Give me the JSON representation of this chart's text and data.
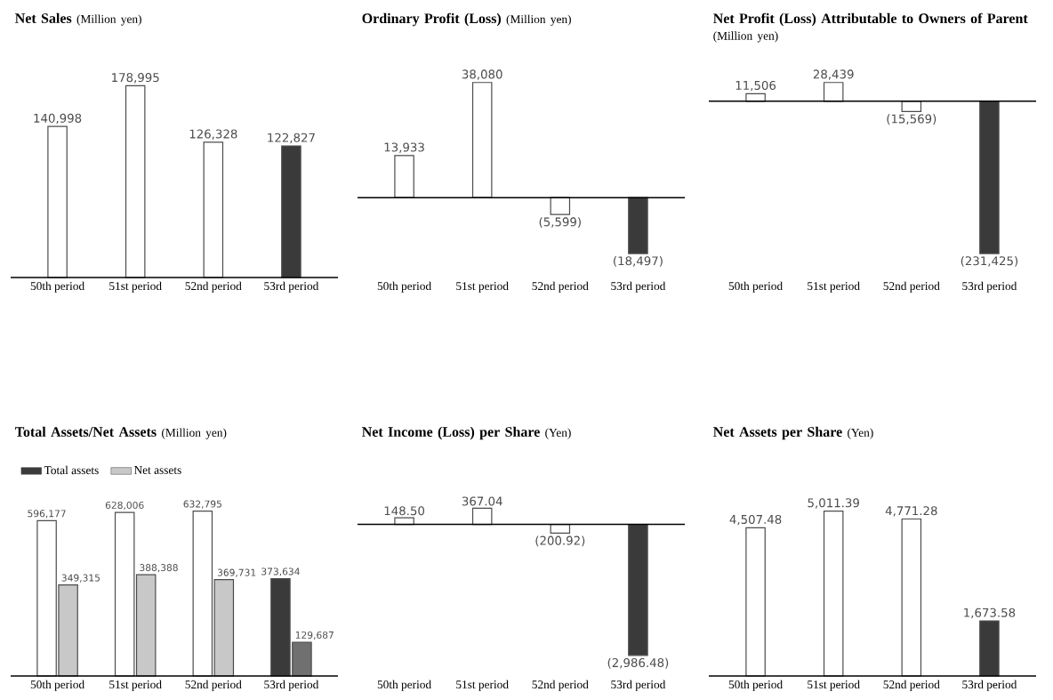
{
  "chart_data": [
    {
      "type": "bar",
      "title": "Net Sales",
      "subtitle": "(Million yen)",
      "categories": [
        "50th period",
        "51st period",
        "52nd period",
        "53rd period"
      ],
      "values": [
        140998,
        178995,
        126328,
        122827
      ],
      "value_labels": [
        "140,998",
        "178,995",
        "126,328",
        "122,827"
      ],
      "colors": [
        "#ffffff",
        "#ffffff",
        "#ffffff",
        "#3a3a3a"
      ]
    },
    {
      "type": "bar",
      "title": "Ordinary Profit (Loss)",
      "subtitle": "(Million yen)",
      "categories": [
        "50th period",
        "51st period",
        "52nd period",
        "53rd period"
      ],
      "values": [
        13933,
        38080,
        -5599,
        -18497
      ],
      "value_labels": [
        "13,933",
        "38,080",
        "(5,599)",
        "(18,497)"
      ],
      "colors": [
        "#ffffff",
        "#ffffff",
        "#ffffff",
        "#3a3a3a"
      ]
    },
    {
      "type": "bar",
      "title": "Net Profit (Loss) Attributable to Owners of Parent",
      "subtitle": "(Million yen)",
      "categories": [
        "50th period",
        "51st period",
        "52nd period",
        "53rd period"
      ],
      "values": [
        11506,
        28439,
        -15569,
        -231425
      ],
      "value_labels": [
        "11,506",
        "28,439",
        "(15,569)",
        "(231,425)"
      ],
      "colors": [
        "#ffffff",
        "#ffffff",
        "#ffffff",
        "#3a3a3a"
      ]
    },
    {
      "type": "bar",
      "title": "Total Assets/Net Assets",
      "subtitle": "(Million yen)",
      "categories": [
        "50th period",
        "51st period",
        "52nd period",
        "53rd period"
      ],
      "legend": "top left",
      "series": [
        {
          "name": "Total assets",
          "color": "#3a3a3a",
          "values": [
            596177,
            628006,
            632795,
            373634
          ],
          "value_labels": [
            "596,177",
            "628,006",
            "632,795",
            "373,634"
          ],
          "colors": [
            "#ffffff",
            "#ffffff",
            "#ffffff",
            "#3a3a3a"
          ]
        },
        {
          "name": "Net assets",
          "color": "#c8c8c8",
          "values": [
            349315,
            388388,
            369731,
            129687
          ],
          "value_labels": [
            "349,315",
            "388,388",
            "369,731",
            "129,687"
          ],
          "colors": [
            "#c8c8c8",
            "#c8c8c8",
            "#c8c8c8",
            "#707070"
          ]
        }
      ]
    },
    {
      "type": "bar",
      "title": "Net Income (Loss) per Share",
      "subtitle": "(Yen)",
      "categories": [
        "50th period",
        "51st period",
        "52nd period",
        "53rd period"
      ],
      "values": [
        148.5,
        367.04,
        -200.92,
        -2986.48
      ],
      "value_labels": [
        "148.50",
        "367.04",
        "(200.92)",
        "(2,986.48)"
      ],
      "colors": [
        "#ffffff",
        "#ffffff",
        "#ffffff",
        "#3a3a3a"
      ]
    },
    {
      "type": "bar",
      "title": "Net Assets per Share",
      "subtitle": "(Yen)",
      "categories": [
        "50th period",
        "51st period",
        "52nd period",
        "53rd period"
      ],
      "values": [
        4507.48,
        5011.39,
        4771.28,
        1673.58
      ],
      "value_labels": [
        "4,507.48",
        "5,011.39",
        "4,771.28",
        "1,673.58"
      ],
      "colors": [
        "#ffffff",
        "#ffffff",
        "#ffffff",
        "#3a3a3a"
      ]
    }
  ]
}
